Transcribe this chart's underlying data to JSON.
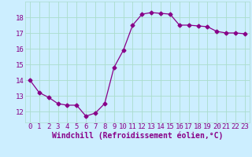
{
  "x": [
    0,
    1,
    2,
    3,
    4,
    5,
    6,
    7,
    8,
    9,
    10,
    11,
    12,
    13,
    14,
    15,
    16,
    17,
    18,
    19,
    20,
    21,
    22,
    23
  ],
  "y": [
    14.0,
    13.2,
    12.9,
    12.5,
    12.4,
    12.4,
    11.7,
    11.9,
    12.5,
    14.8,
    15.9,
    17.5,
    18.2,
    18.3,
    18.25,
    18.2,
    17.5,
    17.5,
    17.45,
    17.4,
    17.1,
    17.0,
    17.0,
    16.95
  ],
  "line_color": "#880088",
  "marker": "D",
  "marker_size": 2.5,
  "bg_color": "#cceeff",
  "grid_color": "#aaddcc",
  "xlabel": "Windchill (Refroidissement éolien,°C)",
  "xlabel_fontsize": 7,
  "tick_fontsize": 6.5,
  "xlim": [
    -0.5,
    23.5
  ],
  "ylim": [
    11.3,
    19.0
  ],
  "yticks": [
    12,
    13,
    14,
    15,
    16,
    17,
    18
  ],
  "xticks": [
    0,
    1,
    2,
    3,
    4,
    5,
    6,
    7,
    8,
    9,
    10,
    11,
    12,
    13,
    14,
    15,
    16,
    17,
    18,
    19,
    20,
    21,
    22,
    23
  ]
}
